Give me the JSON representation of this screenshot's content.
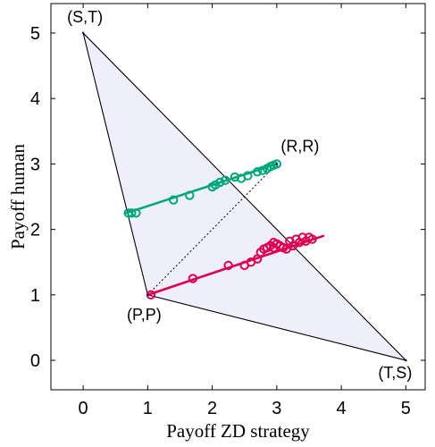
{
  "chart_data": {
    "type": "scatter",
    "title": "",
    "xlabel": "Payoff ZD strategy",
    "ylabel": "Payoff human",
    "xlim": [
      -0.5,
      5.3
    ],
    "ylim": [
      -0.45,
      5.45
    ],
    "xticks": [
      0,
      1,
      2,
      3,
      4,
      5
    ],
    "yticks": [
      0,
      1,
      2,
      3,
      4,
      5
    ],
    "grid": false,
    "feasible_region": {
      "vertices": [
        [
          5,
          0
        ],
        [
          0,
          5
        ],
        [
          1,
          1
        ]
      ],
      "fill": "#eeeffb",
      "edge_color": "#000000"
    },
    "corner_points": [
      {
        "label": "(S,T)",
        "x": 0,
        "y": 5
      },
      {
        "label": "(R,R)",
        "x": 3,
        "y": 3
      },
      {
        "label": "(P,P)",
        "x": 1,
        "y": 1
      },
      {
        "label": "(T,S)",
        "x": 5,
        "y": 0
      }
    ],
    "diagonal": {
      "from": [
        1,
        1
      ],
      "to": [
        3,
        3
      ],
      "style": "dotted"
    },
    "series": [
      {
        "color": "#00a87a",
        "line": {
          "from": [
            0.67,
            2.25
          ],
          "to": [
            3.0,
            3.0
          ]
        },
        "points": [
          [
            0.7,
            2.25
          ],
          [
            0.75,
            2.25
          ],
          [
            0.82,
            2.25
          ],
          [
            1.4,
            2.45
          ],
          [
            1.65,
            2.52
          ],
          [
            2.0,
            2.65
          ],
          [
            2.05,
            2.68
          ],
          [
            2.12,
            2.72
          ],
          [
            2.2,
            2.75
          ],
          [
            2.35,
            2.8
          ],
          [
            2.45,
            2.78
          ],
          [
            2.55,
            2.82
          ],
          [
            2.7,
            2.88
          ],
          [
            2.78,
            2.9
          ],
          [
            2.85,
            2.93
          ],
          [
            2.9,
            2.96
          ],
          [
            2.95,
            2.98
          ],
          [
            3.0,
            3.0
          ]
        ]
      },
      {
        "color": "#e0004f",
        "line": {
          "from": [
            1.0,
            1.0
          ],
          "to": [
            3.72,
            1.9
          ]
        },
        "points": [
          [
            1.05,
            1.0
          ],
          [
            1.7,
            1.25
          ],
          [
            2.25,
            1.45
          ],
          [
            2.5,
            1.45
          ],
          [
            2.6,
            1.5
          ],
          [
            2.7,
            1.55
          ],
          [
            2.75,
            1.65
          ],
          [
            2.8,
            1.7
          ],
          [
            2.85,
            1.72
          ],
          [
            2.9,
            1.75
          ],
          [
            2.95,
            1.72
          ],
          [
            3.0,
            1.78
          ],
          [
            3.05,
            1.75
          ],
          [
            3.1,
            1.72
          ],
          [
            3.15,
            1.7
          ],
          [
            3.2,
            1.82
          ],
          [
            3.3,
            1.85
          ],
          [
            3.35,
            1.8
          ],
          [
            3.4,
            1.88
          ],
          [
            3.45,
            1.82
          ],
          [
            3.5,
            1.88
          ],
          [
            3.55,
            1.85
          ],
          [
            2.95,
            1.8
          ],
          [
            3.25,
            1.75
          ]
        ]
      }
    ]
  }
}
